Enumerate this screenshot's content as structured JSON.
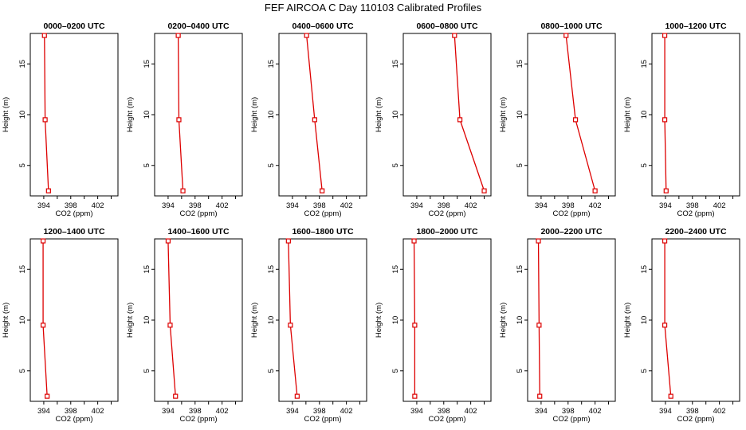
{
  "page": {
    "title": "FEF AIRCOA C  Day 110103  Calibrated Profiles"
  },
  "style": {
    "series_color": "#dd0000",
    "axis_color": "#000000",
    "background": "#ffffff"
  },
  "chart_data": [
    {
      "type": "line",
      "title": "0000–0200 UTC",
      "xlabel": "CO2 (ppm)",
      "ylabel": "Height (m)",
      "xlim": [
        392,
        405
      ],
      "ylim": [
        2,
        18
      ],
      "xticks": [
        394,
        398,
        402
      ],
      "yticks": [
        5,
        10,
        15
      ],
      "grid": false,
      "points": [
        {
          "x": 394.1,
          "y": 17.8
        },
        {
          "x": 394.2,
          "y": 9.5
        },
        {
          "x": 394.7,
          "y": 2.5
        }
      ]
    },
    {
      "type": "line",
      "title": "0200–0400 UTC",
      "xlabel": "CO2 (ppm)",
      "ylabel": "Height (m)",
      "xlim": [
        392,
        405
      ],
      "ylim": [
        2,
        18
      ],
      "xticks": [
        394,
        398,
        402
      ],
      "yticks": [
        5,
        10,
        15
      ],
      "grid": false,
      "points": [
        {
          "x": 395.5,
          "y": 17.8
        },
        {
          "x": 395.6,
          "y": 9.5
        },
        {
          "x": 396.2,
          "y": 2.5
        }
      ]
    },
    {
      "type": "line",
      "title": "0400–0600 UTC",
      "xlabel": "CO2 (ppm)",
      "ylabel": "Height (m)",
      "xlim": [
        392,
        405
      ],
      "ylim": [
        2,
        18
      ],
      "xticks": [
        394,
        398,
        402
      ],
      "yticks": [
        5,
        10,
        15
      ],
      "grid": false,
      "points": [
        {
          "x": 396.1,
          "y": 17.8
        },
        {
          "x": 397.3,
          "y": 9.5
        },
        {
          "x": 398.4,
          "y": 2.5
        }
      ]
    },
    {
      "type": "line",
      "title": "0600–0800 UTC",
      "xlabel": "CO2 (ppm)",
      "ylabel": "Height (m)",
      "xlim": [
        392,
        405
      ],
      "ylim": [
        2,
        18
      ],
      "xticks": [
        394,
        398,
        402
      ],
      "yticks": [
        5,
        10,
        15
      ],
      "grid": false,
      "points": [
        {
          "x": 399.6,
          "y": 17.8
        },
        {
          "x": 400.4,
          "y": 9.5
        },
        {
          "x": 404.0,
          "y": 2.5
        }
      ]
    },
    {
      "type": "line",
      "title": "0800–1000 UTC",
      "xlabel": "CO2 (ppm)",
      "ylabel": "Height (m)",
      "xlim": [
        392,
        405
      ],
      "ylim": [
        2,
        18
      ],
      "xticks": [
        394,
        398,
        402
      ],
      "yticks": [
        5,
        10,
        15
      ],
      "grid": false,
      "points": [
        {
          "x": 397.7,
          "y": 17.8
        },
        {
          "x": 399.1,
          "y": 9.5
        },
        {
          "x": 402.0,
          "y": 2.5
        }
      ]
    },
    {
      "type": "line",
      "title": "1000–1200 UTC",
      "xlabel": "CO2 (ppm)",
      "ylabel": "Height (m)",
      "xlim": [
        392,
        405
      ],
      "ylim": [
        2,
        18
      ],
      "xticks": [
        394,
        398,
        402
      ],
      "yticks": [
        5,
        10,
        15
      ],
      "grid": false,
      "points": [
        {
          "x": 393.9,
          "y": 17.8
        },
        {
          "x": 393.9,
          "y": 9.5
        },
        {
          "x": 394.1,
          "y": 2.5
        }
      ]
    },
    {
      "type": "line",
      "title": "1200–1400 UTC",
      "xlabel": "CO2 (ppm)",
      "ylabel": "Height (m)",
      "xlim": [
        392,
        405
      ],
      "ylim": [
        2,
        18
      ],
      "xticks": [
        394,
        398,
        402
      ],
      "yticks": [
        5,
        10,
        15
      ],
      "grid": false,
      "points": [
        {
          "x": 393.9,
          "y": 17.8
        },
        {
          "x": 393.9,
          "y": 9.5
        },
        {
          "x": 394.5,
          "y": 2.5
        }
      ]
    },
    {
      "type": "line",
      "title": "1400–1600 UTC",
      "xlabel": "CO2 (ppm)",
      "ylabel": "Height (m)",
      "xlim": [
        392,
        405
      ],
      "ylim": [
        2,
        18
      ],
      "xticks": [
        394,
        398,
        402
      ],
      "yticks": [
        5,
        10,
        15
      ],
      "grid": false,
      "points": [
        {
          "x": 394.0,
          "y": 17.8
        },
        {
          "x": 394.3,
          "y": 9.5
        },
        {
          "x": 395.1,
          "y": 2.5
        }
      ]
    },
    {
      "type": "line",
      "title": "1600–1800 UTC",
      "xlabel": "CO2 (ppm)",
      "ylabel": "Height (m)",
      "xlim": [
        392,
        405
      ],
      "ylim": [
        2,
        18
      ],
      "xticks": [
        394,
        398,
        402
      ],
      "yticks": [
        5,
        10,
        15
      ],
      "grid": false,
      "points": [
        {
          "x": 393.4,
          "y": 17.8
        },
        {
          "x": 393.7,
          "y": 9.5
        },
        {
          "x": 394.7,
          "y": 2.5
        }
      ]
    },
    {
      "type": "line",
      "title": "1800–2000 UTC",
      "xlabel": "CO2 (ppm)",
      "ylabel": "Height (m)",
      "xlim": [
        392,
        405
      ],
      "ylim": [
        2,
        18
      ],
      "xticks": [
        394,
        398,
        402
      ],
      "yticks": [
        5,
        10,
        15
      ],
      "grid": false,
      "points": [
        {
          "x": 393.6,
          "y": 17.8
        },
        {
          "x": 393.7,
          "y": 9.5
        },
        {
          "x": 393.7,
          "y": 2.5
        }
      ]
    },
    {
      "type": "line",
      "title": "2000–2200 UTC",
      "xlabel": "CO2 (ppm)",
      "ylabel": "Height (m)",
      "xlim": [
        392,
        405
      ],
      "ylim": [
        2,
        18
      ],
      "xticks": [
        394,
        398,
        402
      ],
      "yticks": [
        5,
        10,
        15
      ],
      "grid": false,
      "points": [
        {
          "x": 393.6,
          "y": 17.8
        },
        {
          "x": 393.7,
          "y": 9.5
        },
        {
          "x": 393.8,
          "y": 2.5
        }
      ]
    },
    {
      "type": "line",
      "title": "2200–2400 UTC",
      "xlabel": "CO2 (ppm)",
      "ylabel": "Height (m)",
      "xlim": [
        392,
        405
      ],
      "ylim": [
        2,
        18
      ],
      "xticks": [
        394,
        398,
        402
      ],
      "yticks": [
        5,
        10,
        15
      ],
      "grid": false,
      "points": [
        {
          "x": 393.9,
          "y": 17.8
        },
        {
          "x": 393.9,
          "y": 9.5
        },
        {
          "x": 394.8,
          "y": 2.5
        }
      ]
    }
  ]
}
